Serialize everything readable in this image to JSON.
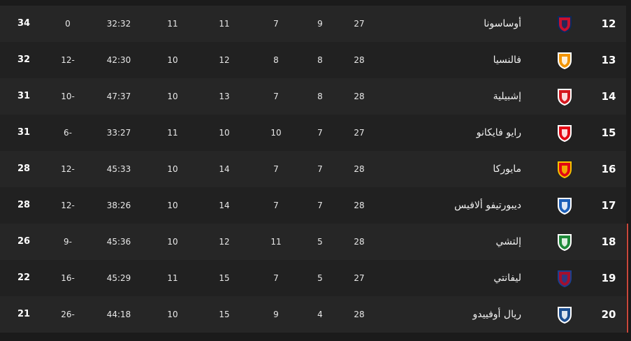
{
  "columns_order": [
    "rank",
    "team",
    "played",
    "won",
    "drawn",
    "lost",
    "remaining",
    "goals",
    "goal_diff",
    "points"
  ],
  "zone_color": "#c9473b",
  "rows": [
    {
      "rank": "12",
      "team": "أوساسونا",
      "played": "27",
      "won": "9",
      "drawn": "7",
      "lost": "11",
      "remaining": "11",
      "goals": "32:32",
      "goal_diff": "0",
      "points": "34",
      "logo": "osasuna-crest",
      "colors": [
        "#c8102e",
        "#0a2a5e"
      ]
    },
    {
      "rank": "13",
      "team": "فالنسيا",
      "played": "28",
      "won": "8",
      "drawn": "8",
      "lost": "12",
      "remaining": "10",
      "goals": "42:30",
      "goal_diff": "12-",
      "points": "32",
      "logo": "valencia-crest",
      "colors": [
        "#f29400",
        "#ffffff"
      ]
    },
    {
      "rank": "14",
      "team": "إشبيلية",
      "played": "28",
      "won": "8",
      "drawn": "7",
      "lost": "13",
      "remaining": "10",
      "goals": "47:37",
      "goal_diff": "10-",
      "points": "31",
      "logo": "sevilla-crest",
      "colors": [
        "#d4171e",
        "#ffffff"
      ]
    },
    {
      "rank": "15",
      "team": "رايو فايكانو",
      "played": "27",
      "won": "7",
      "drawn": "10",
      "lost": "10",
      "remaining": "11",
      "goals": "33:27",
      "goal_diff": "6-",
      "points": "31",
      "logo": "rayo-crest",
      "colors": [
        "#e30613",
        "#ffffff"
      ]
    },
    {
      "rank": "16",
      "team": "مايوركا",
      "played": "28",
      "won": "7",
      "drawn": "7",
      "lost": "14",
      "remaining": "10",
      "goals": "45:33",
      "goal_diff": "12-",
      "points": "28",
      "logo": "mallorca-crest",
      "colors": [
        "#e20613",
        "#f5c400"
      ]
    },
    {
      "rank": "17",
      "team": "ديبورتيفو ألافيس",
      "played": "28",
      "won": "7",
      "drawn": "7",
      "lost": "14",
      "remaining": "10",
      "goals": "38:26",
      "goal_diff": "12-",
      "points": "28",
      "logo": "alaves-crest",
      "colors": [
        "#1c5fb8",
        "#ffffff"
      ]
    },
    {
      "rank": "18",
      "team": "إلتشي",
      "played": "28",
      "won": "5",
      "drawn": "11",
      "lost": "12",
      "remaining": "10",
      "goals": "45:36",
      "goal_diff": "9-",
      "points": "26",
      "logo": "elche-crest",
      "colors": [
        "#1f8a3a",
        "#ffffff"
      ]
    },
    {
      "rank": "19",
      "team": "ليفانتي",
      "played": "27",
      "won": "5",
      "drawn": "7",
      "lost": "15",
      "remaining": "11",
      "goals": "45:29",
      "goal_diff": "16-",
      "points": "22",
      "logo": "levante-crest",
      "colors": [
        "#a50f2d",
        "#1b3f8f"
      ]
    },
    {
      "rank": "20",
      "team": "ريال أوفييدو",
      "played": "28",
      "won": "4",
      "drawn": "9",
      "lost": "15",
      "remaining": "10",
      "goals": "44:18",
      "goal_diff": "26-",
      "points": "21",
      "logo": "oviedo-crest",
      "colors": [
        "#1d4f91",
        "#ffffff"
      ]
    }
  ]
}
